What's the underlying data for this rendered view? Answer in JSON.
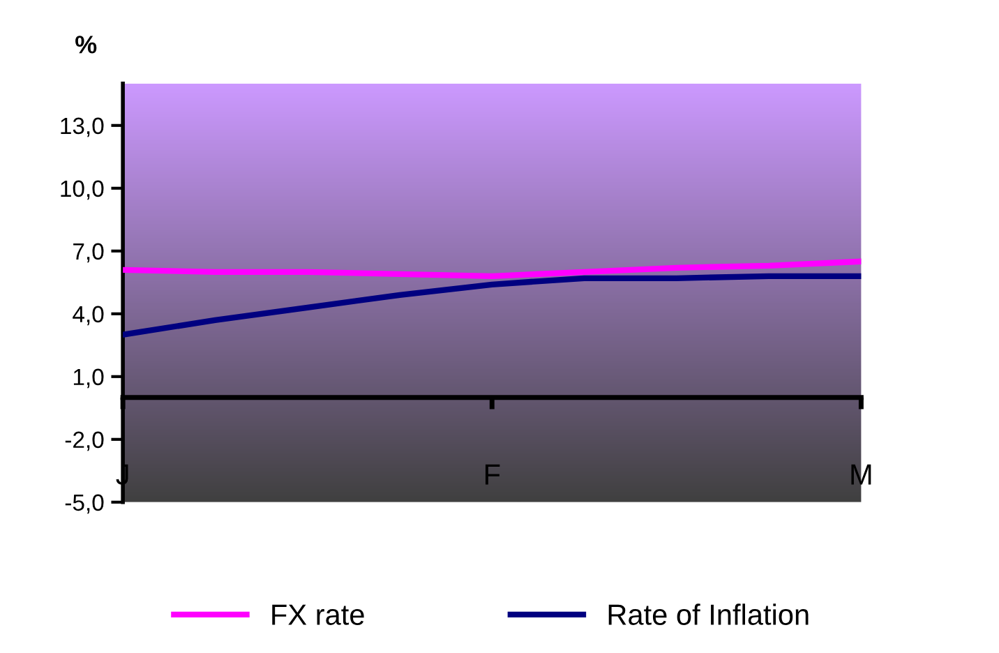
{
  "chart_data": {
    "type": "line",
    "ylabel": "%",
    "categories": [
      "J",
      null,
      null,
      null,
      "F",
      null,
      null,
      null,
      "M"
    ],
    "series": [
      {
        "name": "FX rate",
        "color": "#ff00ff",
        "values": [
          6.1,
          6.0,
          6.0,
          5.9,
          5.8,
          6.0,
          6.2,
          6.3,
          6.5
        ]
      },
      {
        "name": "Rate of Inflation",
        "color": "#000080",
        "values": [
          3.0,
          3.7,
          4.3,
          4.9,
          5.4,
          5.7,
          5.7,
          5.8,
          5.8
        ]
      }
    ],
    "ylim": [
      -5,
      15
    ],
    "yticks": [
      {
        "value": -5,
        "label": "-5,0"
      },
      {
        "value": -2,
        "label": "-2,0"
      },
      {
        "value": 1,
        "label": "1,0"
      },
      {
        "value": 4,
        "label": "4,0"
      },
      {
        "value": 7,
        "label": "7,0"
      },
      {
        "value": 10,
        "label": "10,0"
      },
      {
        "value": 13,
        "label": "13,0"
      }
    ],
    "grid": false,
    "legend": "bottom",
    "marker": "none",
    "line_style": "solid"
  }
}
